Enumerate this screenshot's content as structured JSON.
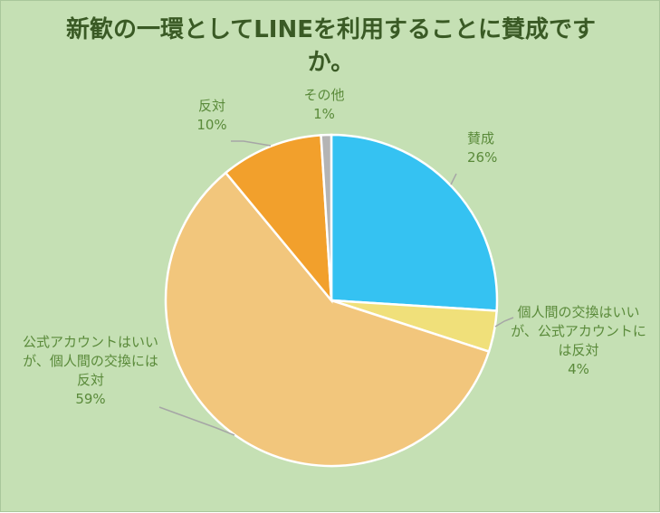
{
  "chart_data": {
    "type": "pie",
    "title": "新歓の一環としてLINEを利用することに賛成ですか。",
    "slices": [
      {
        "label": "賛成",
        "value": 26,
        "value_label": "26%",
        "color": "#35c2f2"
      },
      {
        "label": "個人間の交換はいいが、公式アカウントには反対",
        "value": 4,
        "value_label": "4%",
        "color": "#f0e07a"
      },
      {
        "label": "公式アカウントはいいが、個人間の交換には反対",
        "value": 59,
        "value_label": "59%",
        "color": "#f2c67c"
      },
      {
        "label": "反対",
        "value": 10,
        "value_label": "10%",
        "color": "#f2a02c"
      },
      {
        "label": "その他",
        "value": 1,
        "value_label": "1%",
        "color": "#b4b4b4"
      }
    ],
    "start_angle_deg": 0,
    "direction": "clockwise",
    "legend": "none",
    "data_labels": "outside with leader lines"
  },
  "colors": {
    "background": "#c5e0b4",
    "title": "#3a5a25",
    "label_text": "#5a8a3a",
    "leader_line": "#a6a6a6",
    "slice_border": "#ffffff"
  }
}
